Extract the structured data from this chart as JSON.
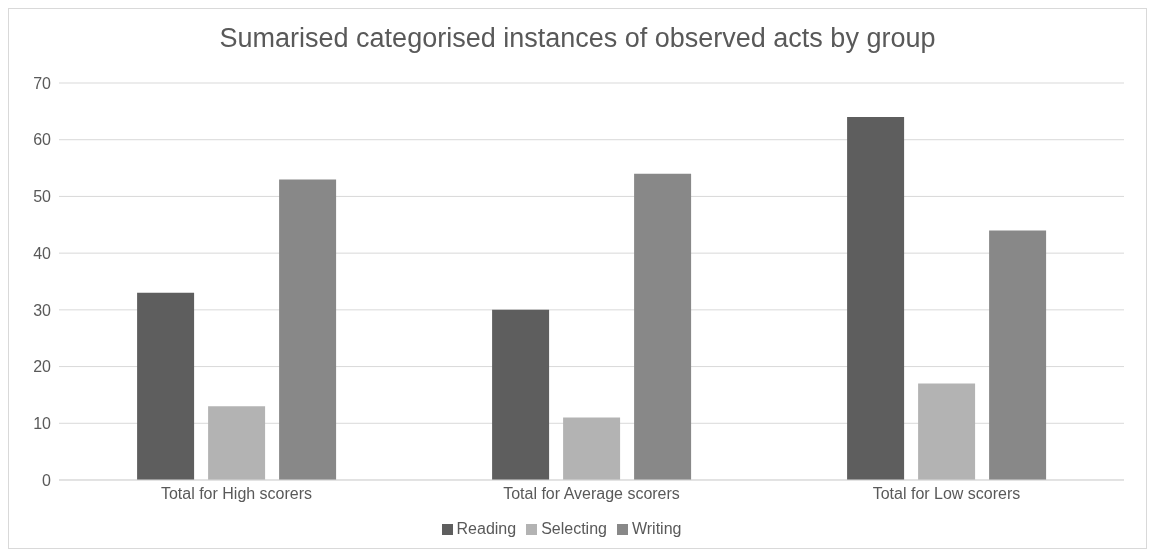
{
  "chart_data": {
    "type": "bar",
    "title": "Sumarised categorised instances of observed acts by group",
    "categories": [
      "Total for High scorers",
      "Total for Average scorers",
      "Total for Low scorers"
    ],
    "series": [
      {
        "name": "Reading",
        "color": "#5e5e5e",
        "values": [
          33,
          30,
          64
        ]
      },
      {
        "name": "Selecting",
        "color": "#b3b3b3",
        "values": [
          13,
          11,
          17
        ]
      },
      {
        "name": "Writing",
        "color": "#888888",
        "values": [
          53,
          54,
          44
        ]
      }
    ],
    "ylim": [
      0,
      70
    ],
    "yticks": [
      0,
      10,
      20,
      30,
      40,
      50,
      60,
      70
    ],
    "grid": "y",
    "legend": "bottom"
  }
}
